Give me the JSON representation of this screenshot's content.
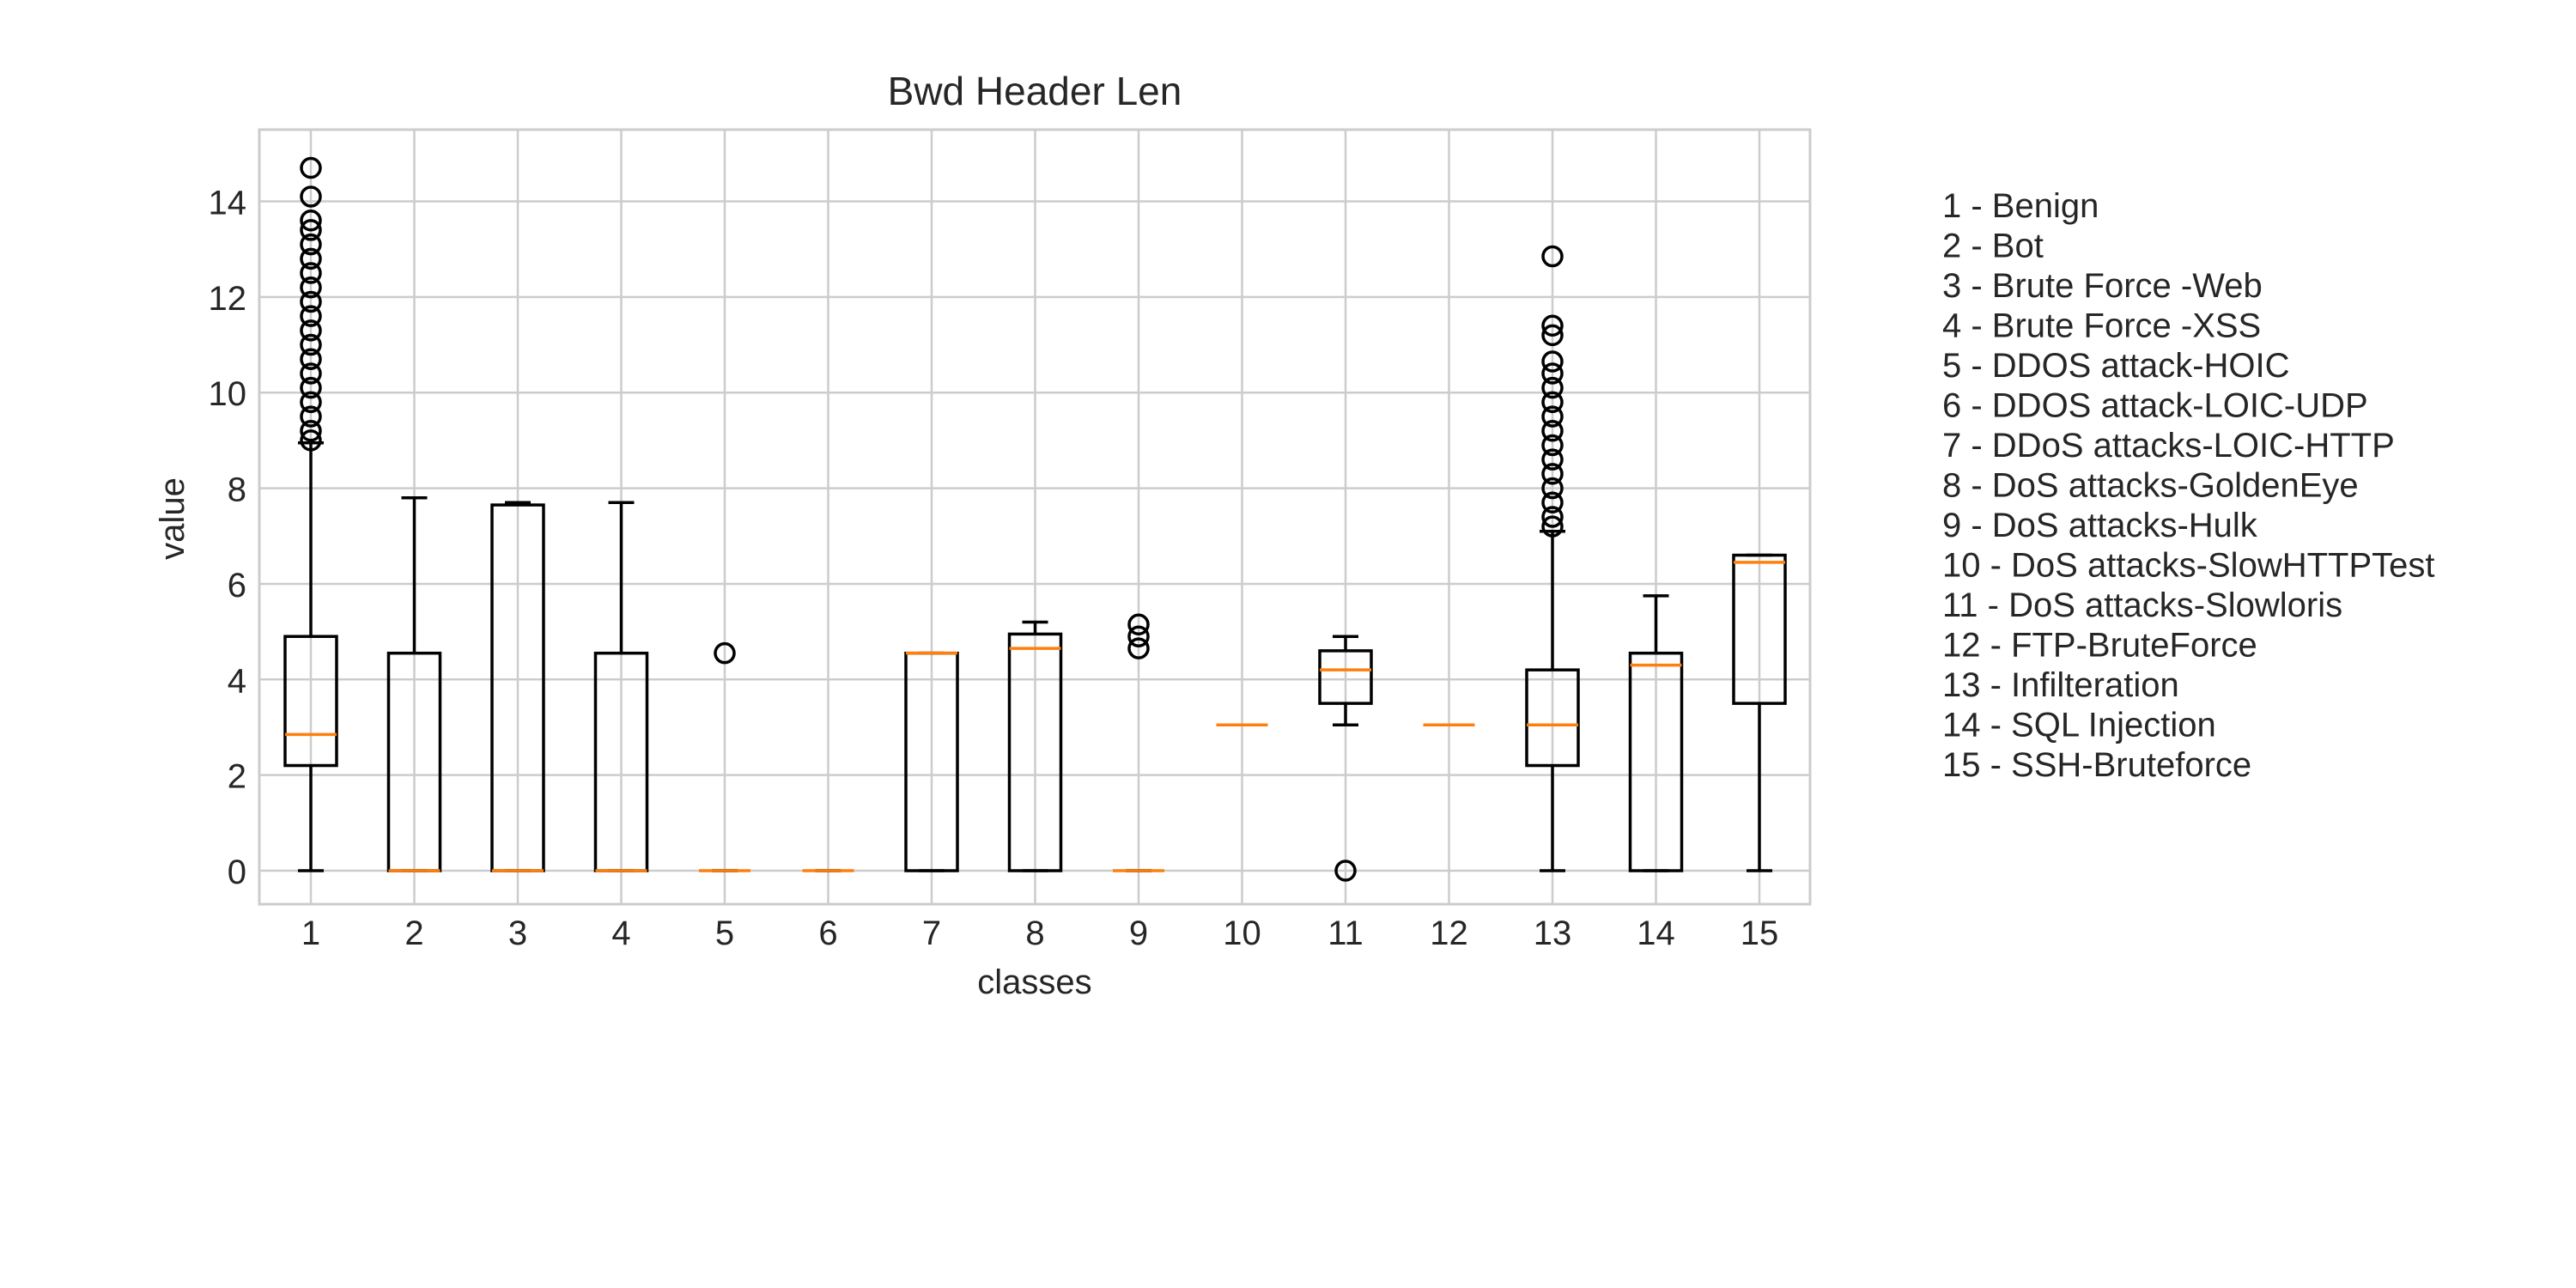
{
  "chart_data": {
    "type": "box",
    "title": "Bwd Header Len",
    "xlabel": "classes",
    "ylabel": "value",
    "ylim": [
      -0.7,
      15.5
    ],
    "yticks": [
      0,
      2,
      4,
      6,
      8,
      10,
      12,
      14
    ],
    "grid": true,
    "legend_position": "right",
    "colors": {
      "box": "#000000",
      "median": "#ff7f0e",
      "grid": "#cccccc"
    },
    "categories": [
      "1",
      "2",
      "3",
      "4",
      "5",
      "6",
      "7",
      "8",
      "9",
      "10",
      "11",
      "12",
      "13",
      "14",
      "15"
    ],
    "legend": [
      "1 - Benign",
      "2 - Bot",
      "3 - Brute Force -Web",
      "4 - Brute Force -XSS",
      "5 - DDOS attack-HOIC",
      "6 - DDOS attack-LOIC-UDP",
      "7 - DDoS attacks-LOIC-HTTP",
      "8 - DoS attacks-GoldenEye",
      "9 - DoS attacks-Hulk",
      "10 - DoS attacks-SlowHTTPTest",
      "11 - DoS attacks-Slowloris",
      "12 - FTP-BruteForce",
      "13 - Infilteration",
      "14 - SQL Injection",
      "15 - SSH-Bruteforce"
    ],
    "boxes": [
      {
        "min": 0,
        "q1": 2.2,
        "median": 2.85,
        "q3": 4.9,
        "max": 8.95,
        "fliers": [
          9.0,
          9.2,
          9.5,
          9.8,
          10.1,
          10.4,
          10.7,
          11.0,
          11.3,
          11.6,
          11.9,
          12.2,
          12.5,
          12.8,
          13.1,
          13.4,
          13.6,
          14.1,
          14.7
        ]
      },
      {
        "min": 0,
        "q1": 0,
        "median": 0,
        "q3": 4.55,
        "max": 7.8,
        "fliers": []
      },
      {
        "min": 0,
        "q1": 0,
        "median": 0,
        "q3": 7.65,
        "max": 7.7,
        "fliers": []
      },
      {
        "min": 0,
        "q1": 0,
        "median": 0,
        "q3": 4.55,
        "max": 7.7,
        "fliers": []
      },
      {
        "min": 0,
        "q1": 0,
        "median": 0,
        "q3": 0,
        "max": 0,
        "fliers": [
          4.55
        ]
      },
      {
        "min": 0,
        "q1": 0,
        "median": 0,
        "q3": 0,
        "max": 0,
        "fliers": []
      },
      {
        "min": 0,
        "q1": 0,
        "median": 4.55,
        "q3": 4.55,
        "max": 4.55,
        "fliers": []
      },
      {
        "min": 0,
        "q1": 0,
        "median": 4.65,
        "q3": 4.95,
        "max": 5.2,
        "fliers": []
      },
      {
        "min": 0,
        "q1": 0,
        "median": 0,
        "q3": 0,
        "max": 0,
        "fliers": [
          4.65,
          4.9,
          5.15
        ]
      },
      {
        "min": 3.05,
        "q1": 3.05,
        "median": 3.05,
        "q3": 3.05,
        "max": 3.05,
        "fliers": []
      },
      {
        "min": 3.05,
        "q1": 3.5,
        "median": 4.2,
        "q3": 4.6,
        "max": 4.9,
        "fliers": [
          0
        ]
      },
      {
        "min": 3.05,
        "q1": 3.05,
        "median": 3.05,
        "q3": 3.05,
        "max": 3.05,
        "fliers": []
      },
      {
        "min": 0,
        "q1": 2.2,
        "median": 3.05,
        "q3": 4.2,
        "max": 7.1,
        "fliers": [
          7.2,
          7.4,
          7.7,
          8.0,
          8.3,
          8.6,
          8.9,
          9.2,
          9.5,
          9.8,
          10.1,
          10.4,
          10.65,
          11.2,
          11.4,
          12.85
        ]
      },
      {
        "min": 0,
        "q1": 0,
        "median": 4.3,
        "q3": 4.55,
        "max": 5.75,
        "fliers": []
      },
      {
        "min": 0,
        "q1": 3.5,
        "median": 6.45,
        "q3": 6.6,
        "max": 6.6,
        "fliers": []
      }
    ]
  }
}
